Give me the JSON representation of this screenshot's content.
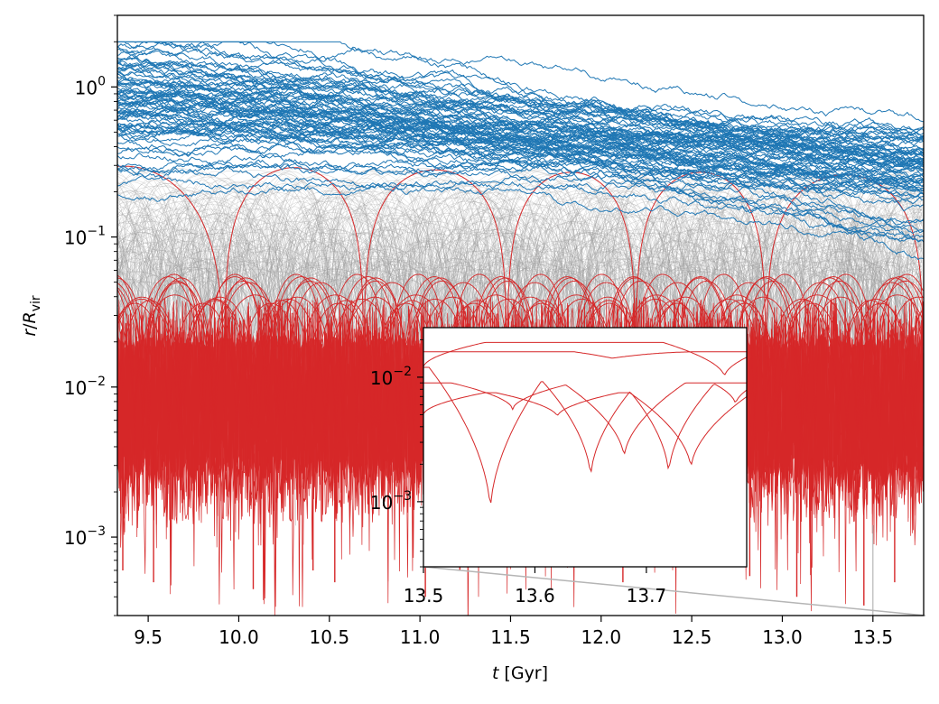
{
  "chart_data": [
    {
      "name": "main",
      "type": "line",
      "yscale": "log",
      "xlim": [
        9.33,
        13.78
      ],
      "ylim": [
        0.0003,
        3.0
      ],
      "x_ticks": [
        9.5,
        10.0,
        10.5,
        11.0,
        11.5,
        12.0,
        12.5,
        13.0,
        13.5
      ],
      "x_tick_labels": [
        "9.5",
        "10.0",
        "10.5",
        "11.0",
        "11.5",
        "12.0",
        "12.5",
        "13.0",
        "13.5"
      ],
      "y_ticks": [
        0.001,
        0.01,
        0.1,
        1
      ],
      "y_tick_labels": [
        {
          "base": "10",
          "exp": "−3"
        },
        {
          "base": "10",
          "exp": "−2"
        },
        {
          "base": "10",
          "exp": "−1"
        },
        {
          "base": "10",
          "exp": "0"
        }
      ],
      "xlabel": {
        "var": "t",
        "unit": " [Gyr]"
      },
      "ylabel": {
        "num": "r",
        "sep": "/",
        "den": "R",
        "sub": "vir"
      },
      "series": [
        {
          "name": "blue-tracks",
          "color": "#1f77b4",
          "description_count": 80,
          "start_median": 0.75,
          "end_median": 0.3,
          "log_spread": 0.22,
          "min_end": 0.045
        },
        {
          "name": "gray-orbits",
          "color": "#9a9a9a",
          "peak_range": [
            0.05,
            0.3
          ],
          "min_floor": 0.0008,
          "period_range": [
            0.2,
            0.9
          ]
        },
        {
          "name": "red-large-orbit",
          "color": "#d62728",
          "peak_values": [
            0.3,
            0.29,
            0.28,
            0.27,
            0.27,
            0.26,
            0.26
          ],
          "dip_times": [
            9.92,
            10.69,
            11.48,
            12.19,
            12.91,
            13.78
          ],
          "start_value": 0.2
        },
        {
          "name": "red-medium-orbits",
          "color": "#d62728",
          "peak_range": [
            0.035,
            0.06
          ],
          "period_range": [
            0.3,
            0.45
          ]
        },
        {
          "name": "red-dense",
          "color": "#d62728",
          "band": [
            0.0015,
            0.028
          ]
        },
        {
          "name": "red-spikes",
          "color": "#d62728",
          "spike_times": [
            9.36,
            9.53,
            10.08,
            10.41,
            10.53,
            11.03,
            11.22,
            12.12,
            12.82,
            13.08,
            13.45,
            13.62
          ],
          "spike_values": [
            0.0006,
            0.0005,
            0.00045,
            0.0006,
            0.0005,
            0.0004,
            0.0006,
            0.0005,
            0.00055,
            0.0004,
            0.00035,
            0.0005
          ]
        }
      ]
    },
    {
      "name": "inset",
      "type": "line",
      "yscale": "log",
      "xlim": [
        13.5,
        13.79
      ],
      "ylim": [
        0.0003,
        0.025
      ],
      "x_ticks": [
        13.5,
        13.6,
        13.7
      ],
      "x_tick_labels": [
        "13.5",
        "13.6",
        "13.7"
      ],
      "y_ticks": [
        0.001,
        0.01
      ],
      "y_tick_labels": [
        {
          "base": "10",
          "exp": "−3"
        },
        {
          "base": "10",
          "exp": "−2"
        }
      ],
      "series": [
        {
          "name": "orbit-1",
          "color": "#d62728",
          "max": 0.019,
          "dips": [
            [
              13.5,
              0.012
            ],
            [
              13.77,
              0.01
            ]
          ],
          "peaks": [
            [
              13.62,
              0.019
            ]
          ]
        },
        {
          "name": "orbit-2",
          "color": "#d62728",
          "max": 0.016,
          "dips": [
            [
              13.69,
              0.012
            ]
          ],
          "peaks": [
            [
              13.54,
              0.016
            ],
            [
              13.75,
              0.016
            ]
          ]
        },
        {
          "name": "orbit-3",
          "color": "#d62728",
          "max": 0.012,
          "dips": [
            [
              13.56,
              0.0008
            ],
            [
              13.65,
              0.0015
            ],
            [
              13.72,
              0.0016
            ],
            [
              13.78,
              0.006
            ]
          ],
          "peaks": []
        },
        {
          "name": "orbit-4",
          "color": "#d62728",
          "max": 0.009,
          "dips": [
            [
              13.58,
              0.0055
            ],
            [
              13.68,
              0.0022
            ]
          ],
          "peaks": []
        },
        {
          "name": "orbit-5",
          "color": "#d62728",
          "max": 0.0075,
          "dips": [
            [
              13.5,
              0.005
            ],
            [
              13.62,
              0.0048
            ],
            [
              13.74,
              0.0018
            ]
          ],
          "peaks": []
        }
      ]
    }
  ]
}
